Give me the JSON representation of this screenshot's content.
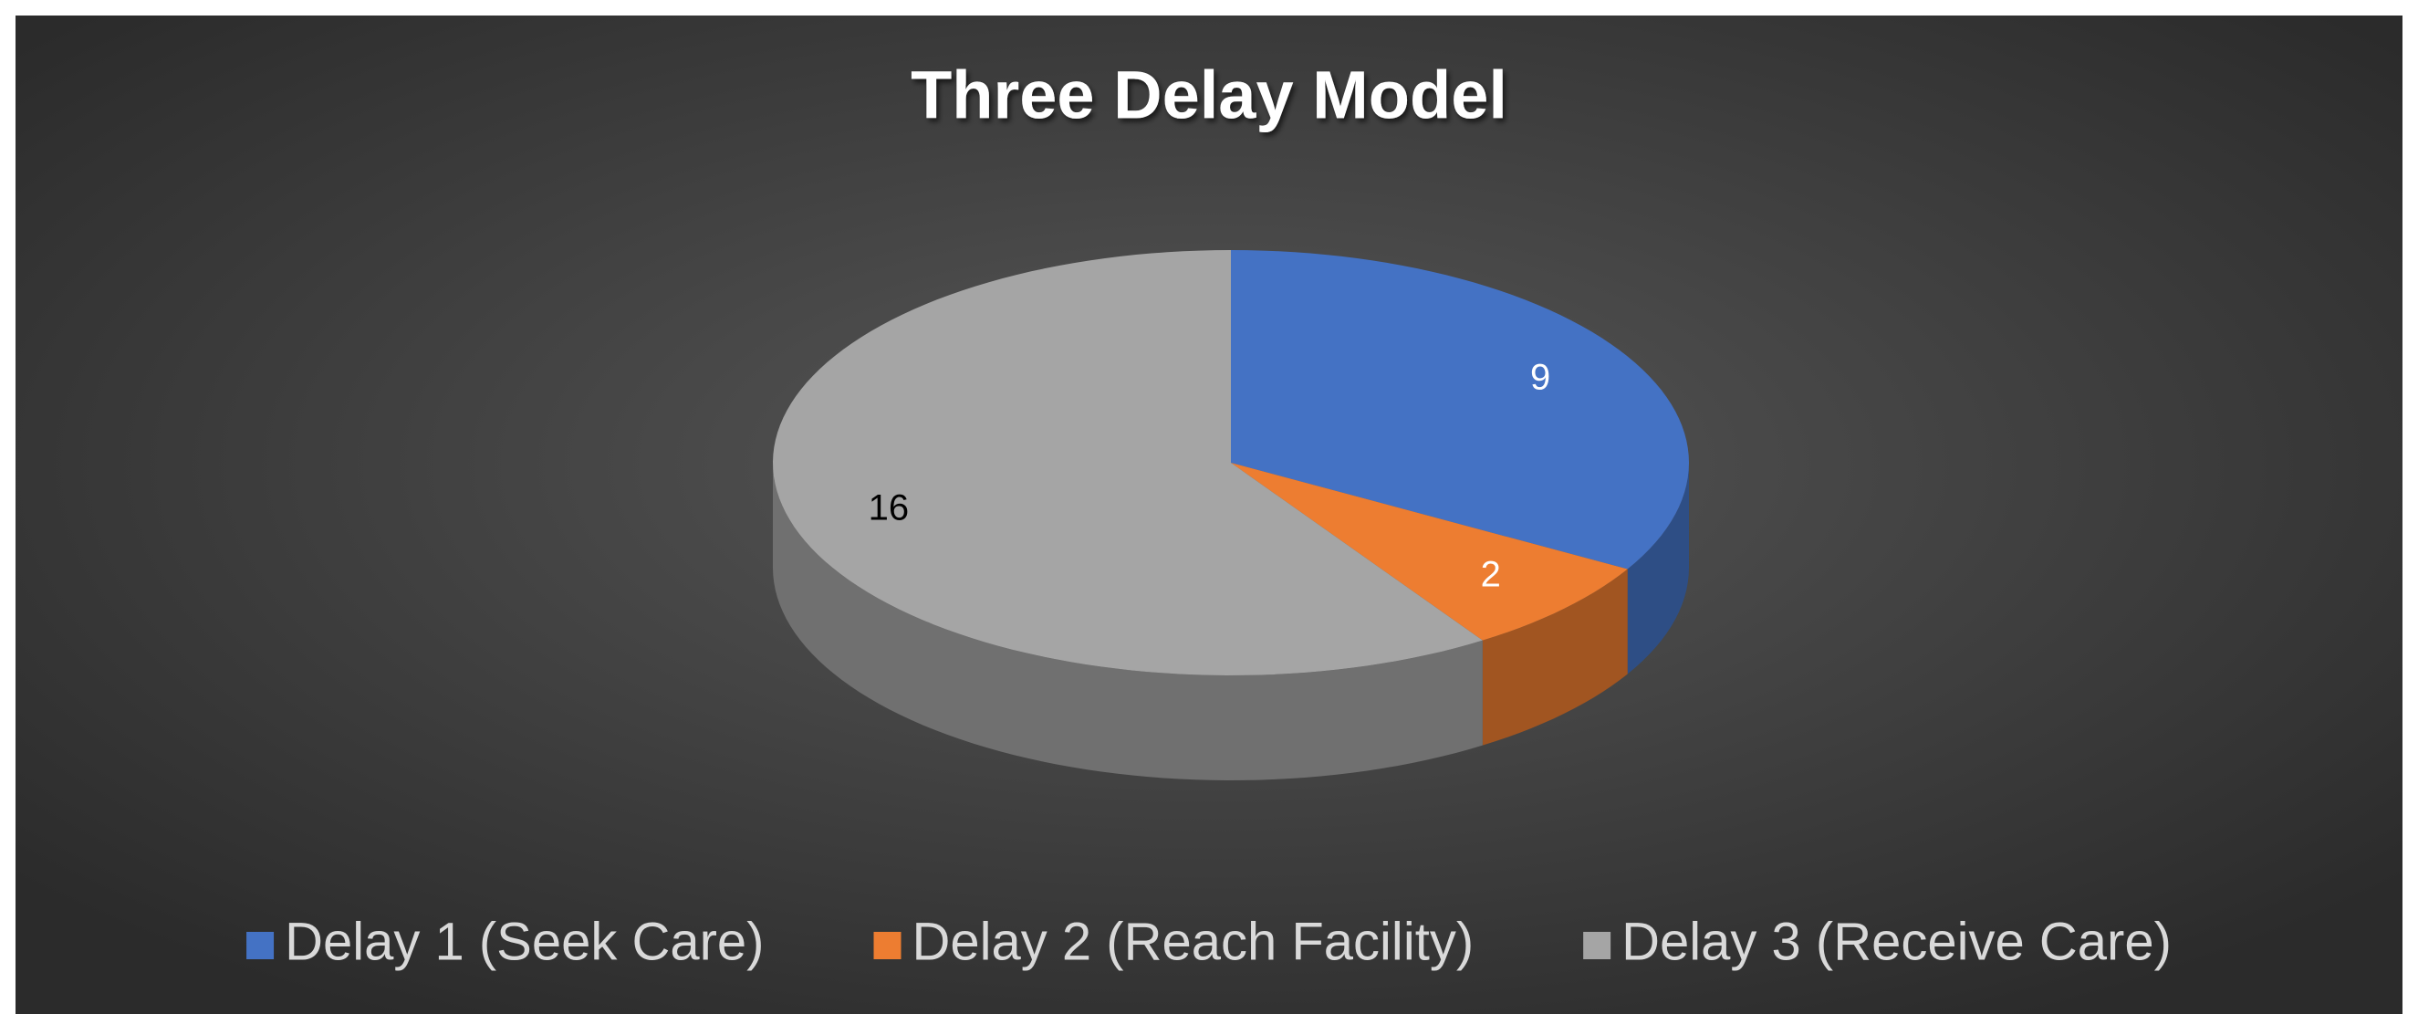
{
  "chart_data": {
    "type": "pie",
    "title": "Three Delay Model",
    "categories": [
      "Delay 1 (Seek Care)",
      "Delay 2 (Reach Facility)",
      "Delay 3 (Receive Care)"
    ],
    "values": [
      9,
      2,
      16
    ],
    "colors": [
      "#4472c4",
      "#ed7d31",
      "#a5a5a5"
    ],
    "label_colors": [
      "#ffffff",
      "#ffffff",
      "#000000"
    ],
    "legend": "bottom"
  }
}
